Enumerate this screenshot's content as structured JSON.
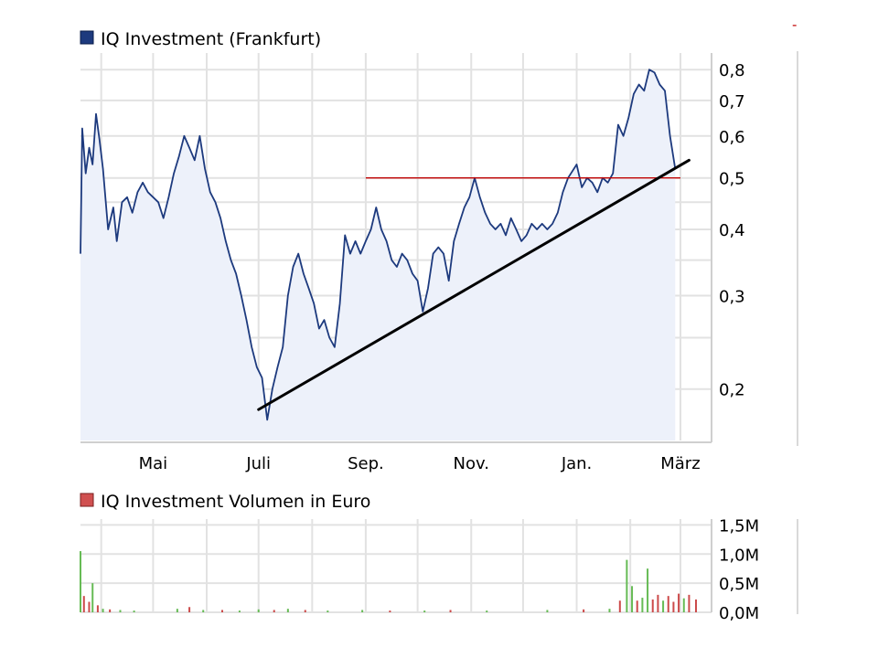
{
  "corner_mark": "-",
  "chart_data": [
    {
      "type": "line",
      "title": "",
      "legend": [
        "IQ Investment (Frankfurt)"
      ],
      "legend_placement": "top-left",
      "y_scale": "log",
      "ylim": [
        0.16,
        0.86
      ],
      "y_ticks": [
        0.2,
        0.3,
        0.4,
        0.5,
        0.6,
        0.7,
        0.8
      ],
      "y_tick_labels": [
        "0,2",
        "0,3",
        "0,4",
        "0,5",
        "0,6",
        "0,7",
        "0,8"
      ],
      "x_tick_labels": [
        "Mai",
        "Juli",
        "Sep.",
        "Nov.",
        "Jan.",
        "März"
      ],
      "xlim": [
        "2007-03-20",
        "2008-03-19"
      ],
      "x_ticks": [
        "2007-05-01",
        "2007-07-01",
        "2007-09-01",
        "2007-11-01",
        "2008-01-01",
        "2008-03-01"
      ],
      "grid": true,
      "colors": {
        "line": "#1d3a7e",
        "fill": "#edf1fa",
        "resistance": "#c00000",
        "trend": "#000000",
        "legend_box": "#1d3a7e"
      },
      "series": [
        {
          "name": "IQ Investment (Frankfurt)",
          "points": [
            [
              "2007-03-20",
              0.36
            ],
            [
              "2007-03-21",
              0.62
            ],
            [
              "2007-03-23",
              0.51
            ],
            [
              "2007-03-25",
              0.57
            ],
            [
              "2007-03-27",
              0.53
            ],
            [
              "2007-03-29",
              0.66
            ],
            [
              "2007-03-31",
              0.59
            ],
            [
              "2007-04-02",
              0.52
            ],
            [
              "2007-04-05",
              0.4
            ],
            [
              "2007-04-08",
              0.44
            ],
            [
              "2007-04-10",
              0.38
            ],
            [
              "2007-04-13",
              0.45
            ],
            [
              "2007-04-16",
              0.46
            ],
            [
              "2007-04-19",
              0.43
            ],
            [
              "2007-04-22",
              0.47
            ],
            [
              "2007-04-25",
              0.49
            ],
            [
              "2007-04-28",
              0.47
            ],
            [
              "2007-05-01",
              0.46
            ],
            [
              "2007-05-04",
              0.45
            ],
            [
              "2007-05-07",
              0.42
            ],
            [
              "2007-05-10",
              0.46
            ],
            [
              "2007-05-13",
              0.51
            ],
            [
              "2007-05-16",
              0.55
            ],
            [
              "2007-05-19",
              0.6
            ],
            [
              "2007-05-22",
              0.57
            ],
            [
              "2007-05-25",
              0.54
            ],
            [
              "2007-05-28",
              0.6
            ],
            [
              "2007-05-31",
              0.52
            ],
            [
              "2007-06-03",
              0.47
            ],
            [
              "2007-06-06",
              0.45
            ],
            [
              "2007-06-09",
              0.42
            ],
            [
              "2007-06-12",
              0.38
            ],
            [
              "2007-06-15",
              0.35
            ],
            [
              "2007-06-18",
              0.33
            ],
            [
              "2007-06-21",
              0.3
            ],
            [
              "2007-06-24",
              0.27
            ],
            [
              "2007-06-27",
              0.24
            ],
            [
              "2007-06-30",
              0.22
            ],
            [
              "2007-07-03",
              0.21
            ],
            [
              "2007-07-06",
              0.175
            ],
            [
              "2007-07-09",
              0.2
            ],
            [
              "2007-07-12",
              0.22
            ],
            [
              "2007-07-15",
              0.24
            ],
            [
              "2007-07-18",
              0.3
            ],
            [
              "2007-07-21",
              0.34
            ],
            [
              "2007-07-24",
              0.36
            ],
            [
              "2007-07-27",
              0.33
            ],
            [
              "2007-07-30",
              0.31
            ],
            [
              "2007-08-02",
              0.29
            ],
            [
              "2007-08-05",
              0.26
            ],
            [
              "2007-08-08",
              0.27
            ],
            [
              "2007-08-11",
              0.25
            ],
            [
              "2007-08-14",
              0.24
            ],
            [
              "2007-08-17",
              0.29
            ],
            [
              "2007-08-20",
              0.39
            ],
            [
              "2007-08-23",
              0.36
            ],
            [
              "2007-08-26",
              0.38
            ],
            [
              "2007-08-29",
              0.36
            ],
            [
              "2007-09-01",
              0.38
            ],
            [
              "2007-09-04",
              0.4
            ],
            [
              "2007-09-07",
              0.44
            ],
            [
              "2007-09-10",
              0.4
            ],
            [
              "2007-09-13",
              0.38
            ],
            [
              "2007-09-16",
              0.35
            ],
            [
              "2007-09-19",
              0.34
            ],
            [
              "2007-09-22",
              0.36
            ],
            [
              "2007-09-25",
              0.35
            ],
            [
              "2007-09-28",
              0.33
            ],
            [
              "2007-10-01",
              0.32
            ],
            [
              "2007-10-04",
              0.28
            ],
            [
              "2007-10-07",
              0.31
            ],
            [
              "2007-10-10",
              0.36
            ],
            [
              "2007-10-13",
              0.37
            ],
            [
              "2007-10-16",
              0.36
            ],
            [
              "2007-10-19",
              0.32
            ],
            [
              "2007-10-22",
              0.38
            ],
            [
              "2007-10-25",
              0.41
            ],
            [
              "2007-10-28",
              0.44
            ],
            [
              "2007-10-31",
              0.46
            ],
            [
              "2007-11-03",
              0.5
            ],
            [
              "2007-11-06",
              0.46
            ],
            [
              "2007-11-09",
              0.43
            ],
            [
              "2007-11-12",
              0.41
            ],
            [
              "2007-11-15",
              0.4
            ],
            [
              "2007-11-18",
              0.41
            ],
            [
              "2007-11-21",
              0.39
            ],
            [
              "2007-11-24",
              0.42
            ],
            [
              "2007-11-27",
              0.4
            ],
            [
              "2007-11-30",
              0.38
            ],
            [
              "2007-12-03",
              0.39
            ],
            [
              "2007-12-06",
              0.41
            ],
            [
              "2007-12-09",
              0.4
            ],
            [
              "2007-12-12",
              0.41
            ],
            [
              "2007-12-15",
              0.4
            ],
            [
              "2007-12-18",
              0.41
            ],
            [
              "2007-12-21",
              0.43
            ],
            [
              "2007-12-24",
              0.47
            ],
            [
              "2007-12-27",
              0.5
            ],
            [
              "2008-01-01",
              0.53
            ],
            [
              "2008-01-04",
              0.48
            ],
            [
              "2008-01-07",
              0.5
            ],
            [
              "2008-01-10",
              0.49
            ],
            [
              "2008-01-13",
              0.47
            ],
            [
              "2008-01-16",
              0.5
            ],
            [
              "2008-01-19",
              0.49
            ],
            [
              "2008-01-22",
              0.51
            ],
            [
              "2008-01-25",
              0.63
            ],
            [
              "2008-01-28",
              0.6
            ],
            [
              "2008-01-31",
              0.65
            ],
            [
              "2008-02-03",
              0.72
            ],
            [
              "2008-02-06",
              0.75
            ],
            [
              "2008-02-09",
              0.73
            ],
            [
              "2008-02-12",
              0.8
            ],
            [
              "2008-02-15",
              0.79
            ],
            [
              "2008-02-18",
              0.75
            ],
            [
              "2008-02-21",
              0.73
            ],
            [
              "2008-02-24",
              0.6
            ],
            [
              "2008-02-27",
              0.52
            ]
          ]
        }
      ],
      "annotations": [
        {
          "type": "horizontal-line",
          "y": 0.5,
          "x_start": "2007-09-01",
          "x_end": "2008-03-01"
        },
        {
          "type": "trend-line",
          "from": [
            "2007-07-01",
            0.183
          ],
          "to": [
            "2008-03-06",
            0.54
          ]
        }
      ]
    },
    {
      "type": "bar",
      "title": "",
      "legend": [
        "IQ Investment Volumen in Euro"
      ],
      "legend_placement": "top-left",
      "ylim": [
        0,
        1.6
      ],
      "y_ticks": [
        0,
        0.5,
        1.0,
        1.5
      ],
      "y_tick_labels": [
        "0,0M",
        "0,5M",
        "1,0M",
        "1,5M"
      ],
      "y_unit": "million euro",
      "xlim": [
        "2007-03-20",
        "2008-03-19"
      ],
      "x_ticks": [
        "2007-05-01",
        "2007-07-01",
        "2007-09-01",
        "2007-11-01",
        "2008-01-01",
        "2008-03-01"
      ],
      "grid": true,
      "colors": {
        "up": "#66bb55",
        "down": "#cc4a4a",
        "legend_box": "#d05050"
      },
      "series": [
        {
          "name": "IQ Investment Volumen in Euro",
          "points": [
            [
              "2007-03-20",
              1.05,
              "up"
            ],
            [
              "2007-03-22",
              0.28,
              "down"
            ],
            [
              "2007-03-25",
              0.18,
              "down"
            ],
            [
              "2007-03-27",
              0.5,
              "up"
            ],
            [
              "2007-03-30",
              0.12,
              "down"
            ],
            [
              "2007-04-02",
              0.06,
              "up"
            ],
            [
              "2007-04-06",
              0.05,
              "down"
            ],
            [
              "2007-04-12",
              0.04,
              "up"
            ],
            [
              "2007-04-20",
              0.03,
              "up"
            ],
            [
              "2007-05-15",
              0.06,
              "up"
            ],
            [
              "2007-05-22",
              0.09,
              "down"
            ],
            [
              "2007-05-30",
              0.04,
              "up"
            ],
            [
              "2007-06-10",
              0.04,
              "down"
            ],
            [
              "2007-06-20",
              0.03,
              "up"
            ],
            [
              "2007-07-01",
              0.05,
              "up"
            ],
            [
              "2007-07-10",
              0.04,
              "down"
            ],
            [
              "2007-07-18",
              0.06,
              "up"
            ],
            [
              "2007-07-28",
              0.04,
              "down"
            ],
            [
              "2007-08-10",
              0.03,
              "up"
            ],
            [
              "2007-08-30",
              0.04,
              "up"
            ],
            [
              "2007-09-15",
              0.03,
              "down"
            ],
            [
              "2007-10-05",
              0.03,
              "up"
            ],
            [
              "2007-10-20",
              0.04,
              "down"
            ],
            [
              "2007-11-10",
              0.03,
              "up"
            ],
            [
              "2007-12-15",
              0.04,
              "up"
            ],
            [
              "2008-01-05",
              0.05,
              "down"
            ],
            [
              "2008-01-20",
              0.06,
              "up"
            ],
            [
              "2008-01-26",
              0.2,
              "down"
            ],
            [
              "2008-01-30",
              0.9,
              "up"
            ],
            [
              "2008-02-02",
              0.45,
              "up"
            ],
            [
              "2008-02-05",
              0.2,
              "down"
            ],
            [
              "2008-02-08",
              0.25,
              "up"
            ],
            [
              "2008-02-11",
              0.75,
              "up"
            ],
            [
              "2008-02-14",
              0.22,
              "down"
            ],
            [
              "2008-02-17",
              0.3,
              "down"
            ],
            [
              "2008-02-20",
              0.2,
              "up"
            ],
            [
              "2008-02-23",
              0.28,
              "down"
            ],
            [
              "2008-02-26",
              0.18,
              "down"
            ],
            [
              "2008-02-29",
              0.32,
              "down"
            ],
            [
              "2008-03-03",
              0.24,
              "up"
            ],
            [
              "2008-03-06",
              0.3,
              "down"
            ],
            [
              "2008-03-10",
              0.22,
              "down"
            ]
          ]
        }
      ]
    }
  ]
}
